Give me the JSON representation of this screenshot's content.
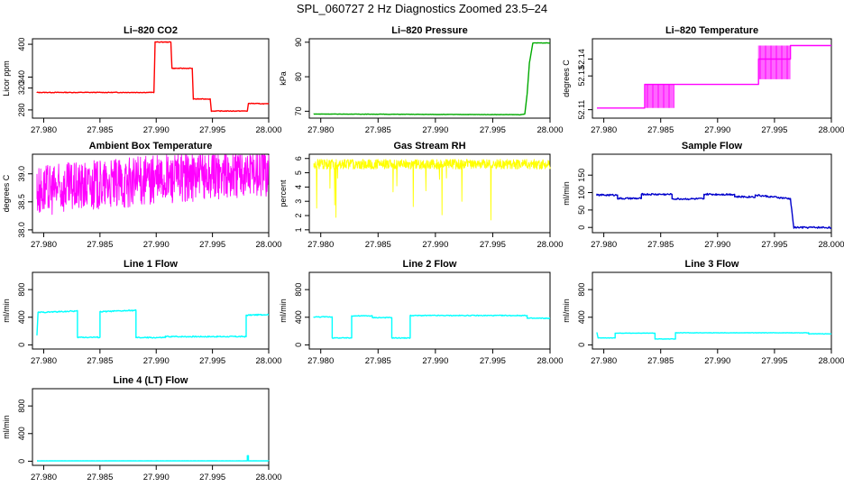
{
  "page": {
    "title": "SPL_060727  2 Hz Diagnostics Zoomed 23.5–24"
  },
  "chart_data": [
    {
      "type": "line",
      "title": "Li–820 CO2",
      "ylabel": "Licor ppm",
      "xlim": [
        27.979,
        28.0
      ],
      "ylim": [
        265,
        410
      ],
      "xticks": [
        27.98,
        27.985,
        27.99,
        27.995,
        28.0
      ],
      "xticklabels": [
        "27.980",
        "27.985",
        "27.990",
        "27.995",
        "28.000"
      ],
      "yticks": [
        280,
        320,
        340,
        400
      ],
      "yticklabels": [
        "280",
        "320",
        "340",
        "400"
      ],
      "color": "#ff0000",
      "noise": 0.6,
      "series": [
        {
          "x": [
            27.9794,
            27.9898,
            27.9899,
            27.9913,
            27.9914,
            27.9932,
            27.9933,
            27.9948,
            27.9949,
            27.9981,
            27.9982,
            28.0
          ],
          "y": [
            312,
            312,
            404,
            404,
            356,
            356,
            300,
            300,
            278,
            278,
            292,
            291
          ]
        }
      ]
    },
    {
      "type": "line",
      "title": "Li–820 Pressure",
      "ylabel": "kPa",
      "xlim": [
        27.979,
        28.0
      ],
      "ylim": [
        68,
        91
      ],
      "xticks": [
        27.98,
        27.985,
        27.99,
        27.995,
        28.0
      ],
      "xticklabels": [
        "27.980",
        "27.985",
        "27.990",
        "27.995",
        "28.000"
      ],
      "yticks": [
        70,
        80,
        90
      ],
      "yticklabels": [
        "70",
        "80",
        "90"
      ],
      "color": "#00aa00",
      "noise": 0.05,
      "series": [
        {
          "x": [
            27.9794,
            27.9975,
            27.9978,
            27.998,
            27.9982,
            27.9985,
            28.0
          ],
          "y": [
            69.2,
            69.0,
            69.2,
            75,
            84,
            89.8,
            89.8
          ]
        }
      ]
    },
    {
      "type": "line",
      "title": "Li–820 Temperature",
      "ylabel": "degrees C",
      "xlim": [
        27.979,
        28.0
      ],
      "ylim": [
        52.105,
        52.152
      ],
      "xticks": [
        27.98,
        27.985,
        27.99,
        27.995,
        28.0
      ],
      "xticklabels": [
        "27.980",
        "27.985",
        "27.990",
        "27.995",
        "28.000"
      ],
      "yticks": [
        52.11,
        52.13,
        52.14
      ],
      "yticklabels": [
        "52.11",
        "52.13",
        "52.14"
      ],
      "color": "#ff00ff",
      "noise": 0,
      "series": [
        {
          "x": [
            27.9794,
            27.9836,
            27.9836,
            27.9862,
            27.9862,
            27.9936,
            27.9936,
            27.9964,
            27.9964,
            28.0
          ],
          "y": [
            52.111,
            52.111,
            52.125,
            52.125,
            52.125,
            52.125,
            52.14,
            52.14,
            52.148,
            52.148
          ]
        }
      ],
      "bands": [
        {
          "x0": 27.9836,
          "x1": 27.9862,
          "ylo": 52.111,
          "yhi": 52.125
        },
        {
          "x0": 27.9936,
          "x1": 27.9964,
          "ylo": 52.128,
          "yhi": 52.148
        }
      ]
    },
    {
      "type": "line",
      "title": "Ambient Box Temperature",
      "ylabel": "degrees C",
      "xlim": [
        27.979,
        28.0
      ],
      "ylim": [
        37.95,
        39.35
      ],
      "xticks": [
        27.98,
        27.985,
        27.99,
        27.995,
        28.0
      ],
      "xticklabels": [
        "27.980",
        "27.985",
        "27.990",
        "27.995",
        "28.000"
      ],
      "yticks": [
        38.0,
        38.5,
        39.0
      ],
      "yticklabels": [
        "38.0",
        "38.5",
        "39.0"
      ],
      "color": "#ff00ff",
      "noise": 0.45,
      "dense": true,
      "series": [
        {
          "x": [
            27.9794,
            27.985,
            27.99,
            27.995,
            28.0
          ],
          "y": [
            38.7,
            38.8,
            38.9,
            38.98,
            39.05
          ]
        }
      ]
    },
    {
      "type": "line",
      "title": "Gas Stream RH",
      "ylabel": "percent",
      "xlim": [
        27.979,
        28.0
      ],
      "ylim": [
        0.8,
        6.3
      ],
      "xticks": [
        27.98,
        27.985,
        27.99,
        27.995,
        28.0
      ],
      "xticklabels": [
        "27.980",
        "27.985",
        "27.990",
        "27.995",
        "28.000"
      ],
      "yticks": [
        1,
        2,
        3,
        4,
        5,
        6
      ],
      "yticklabels": [
        "1",
        "2",
        "3",
        "4",
        "5",
        "6"
      ],
      "color": "#ffff00",
      "noise": 0.35,
      "dense": true,
      "spikes": 0.03,
      "series": [
        {
          "x": [
            27.9794,
            28.0
          ],
          "y": [
            5.6,
            5.6
          ]
        }
      ]
    },
    {
      "type": "line",
      "title": "Sample Flow",
      "ylabel": "ml/min",
      "xlim": [
        27.979,
        28.0
      ],
      "ylim": [
        -15,
        210
      ],
      "xticks": [
        27.98,
        27.985,
        27.99,
        27.995,
        28.0
      ],
      "xticklabels": [
        "27.980",
        "27.985",
        "27.990",
        "27.995",
        "28.000"
      ],
      "yticks": [
        0,
        50,
        100,
        150
      ],
      "yticklabels": [
        "0",
        "50",
        "100",
        "150"
      ],
      "color": "#0000cc",
      "noise": 2.5,
      "series": [
        {
          "x": [
            27.9794,
            27.9812,
            27.9812,
            27.9833,
            27.9833,
            27.986,
            27.986,
            27.9888,
            27.9888,
            27.9915,
            27.9915,
            27.9933,
            27.9933,
            27.9964,
            27.9967,
            28.0
          ],
          "y": [
            93,
            93,
            83,
            83,
            95,
            95,
            82,
            82,
            95,
            95,
            88,
            88,
            93,
            82,
            0,
            0
          ]
        }
      ]
    },
    {
      "type": "line",
      "title": "Line 1 Flow",
      "ylabel": "ml/min",
      "xlim": [
        27.979,
        28.0
      ],
      "ylim": [
        -60,
        1050
      ],
      "xticks": [
        27.98,
        27.985,
        27.99,
        27.995,
        28.0
      ],
      "xticklabels": [
        "27.980",
        "27.985",
        "27.990",
        "27.995",
        "28.000"
      ],
      "yticks": [
        0,
        400,
        800
      ],
      "yticklabels": [
        "0",
        "400",
        "800"
      ],
      "color": "#00ffff",
      "noise": 8,
      "series": [
        {
          "x": [
            27.9794,
            27.9795,
            27.983,
            27.983,
            27.985,
            27.985,
            27.9882,
            27.9882,
            27.9908,
            27.9908,
            27.998,
            27.998,
            28.0
          ],
          "y": [
            150,
            470,
            490,
            110,
            110,
            480,
            500,
            105,
            105,
            120,
            120,
            430,
            440
          ]
        }
      ]
    },
    {
      "type": "line",
      "title": "Line 2 Flow",
      "ylabel": "ml/min",
      "xlim": [
        27.979,
        28.0
      ],
      "ylim": [
        -60,
        1050
      ],
      "xticks": [
        27.98,
        27.985,
        27.99,
        27.995,
        28.0
      ],
      "xticklabels": [
        "27.980",
        "27.985",
        "27.990",
        "27.995",
        "28.000"
      ],
      "yticks": [
        0,
        400,
        800
      ],
      "yticklabels": [
        "0",
        "400",
        "800"
      ],
      "color": "#00ffff",
      "noise": 6,
      "series": [
        {
          "x": [
            27.9794,
            27.981,
            27.981,
            27.9827,
            27.9827,
            27.9845,
            27.9845,
            27.9862,
            27.9862,
            27.9878,
            27.9878,
            27.998,
            27.998,
            28.0
          ],
          "y": [
            405,
            405,
            100,
            100,
            420,
            420,
            395,
            395,
            100,
            100,
            425,
            425,
            385,
            385
          ]
        }
      ]
    },
    {
      "type": "line",
      "title": "Line 3 Flow",
      "ylabel": "ml/min",
      "xlim": [
        27.979,
        28.0
      ],
      "ylim": [
        -60,
        1050
      ],
      "xticks": [
        27.98,
        27.985,
        27.99,
        27.995,
        28.0
      ],
      "xticklabels": [
        "27.980",
        "27.985",
        "27.990",
        "27.995",
        "28.000"
      ],
      "yticks": [
        0,
        400,
        800
      ],
      "yticklabels": [
        "0",
        "400",
        "800"
      ],
      "color": "#00ffff",
      "noise": 3,
      "series": [
        {
          "x": [
            27.9794,
            27.9795,
            27.981,
            27.981,
            27.9845,
            27.9845,
            27.9863,
            27.9863,
            27.998,
            27.998,
            28.0
          ],
          "y": [
            180,
            100,
            100,
            170,
            170,
            85,
            85,
            175,
            175,
            160,
            160
          ]
        }
      ]
    },
    {
      "type": "line",
      "title": "Line 4 (LT) Flow",
      "ylabel": "ml/min",
      "xlim": [
        27.979,
        28.0
      ],
      "ylim": [
        -60,
        1050
      ],
      "xticks": [
        27.98,
        27.985,
        27.99,
        27.995,
        28.0
      ],
      "xticklabels": [
        "27.980",
        "27.985",
        "27.990",
        "27.995",
        "28.000"
      ],
      "yticks": [
        0,
        400,
        800
      ],
      "yticklabels": [
        "0",
        "400",
        "800"
      ],
      "color": "#00ffff",
      "noise": 1,
      "series": [
        {
          "x": [
            27.9794,
            27.9981,
            27.9981,
            27.9982,
            27.9982,
            28.0
          ],
          "y": [
            5,
            5,
            80,
            80,
            5,
            5
          ]
        }
      ]
    }
  ]
}
